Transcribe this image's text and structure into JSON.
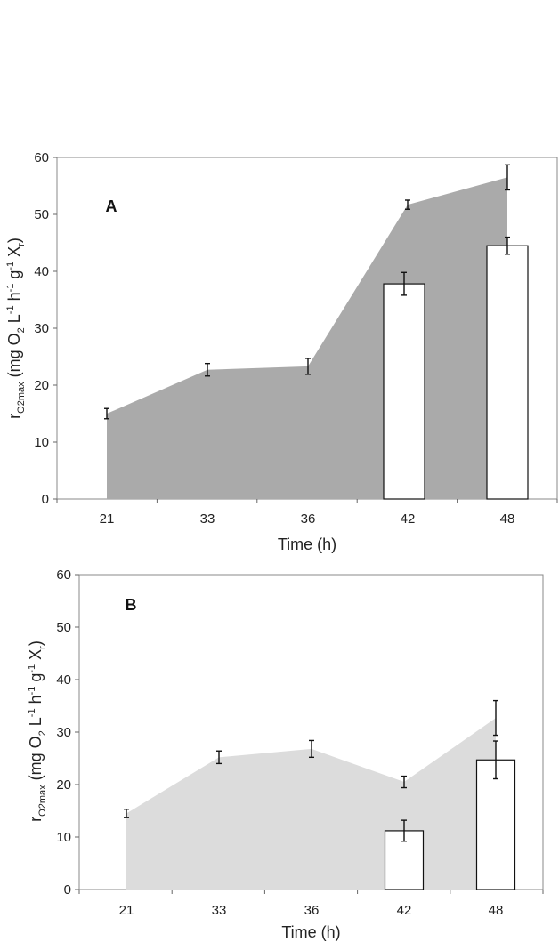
{
  "chart_data": [
    {
      "type": "area",
      "panel_label": "A",
      "categories": [
        "21",
        "33",
        "36",
        "42",
        "48"
      ],
      "ylim": [
        0,
        60
      ],
      "yticks": [
        "0",
        "10",
        "20",
        "30",
        "40",
        "50",
        "60"
      ],
      "xlabel": "Time (h)",
      "ylabel": {
        "r": "r",
        "sub": "O2max",
        "a": " (mg O",
        "sub2": "2",
        "b": " L",
        "sup1": "-1",
        "c": " h",
        "sup2": "-1",
        "d": " g",
        "sup3": "-1",
        "e": " X",
        "sub3": "r",
        "f": ")"
      },
      "series": [
        {
          "name": "area",
          "values": [
            15,
            22.7,
            23.3,
            51.7,
            56.5
          ],
          "errors": [
            0.9,
            1.1,
            1.4,
            0.8,
            2.2
          ],
          "color": "#aaaaaa"
        },
        {
          "name": "bars",
          "values": [
            null,
            null,
            null,
            37.8,
            44.5
          ],
          "errors": [
            null,
            null,
            null,
            2.0,
            1.5
          ],
          "color": "#ffffff"
        }
      ]
    },
    {
      "type": "area",
      "panel_label": "B",
      "categories": [
        "21",
        "33",
        "36",
        "42",
        "48"
      ],
      "ylim": [
        0,
        60
      ],
      "yticks": [
        "0",
        "10",
        "20",
        "30",
        "40",
        "50",
        "60"
      ],
      "xlabel": "Time (h)",
      "ylabel": {
        "r": "r",
        "sub": "O2max",
        "a": " (mg O",
        "sub2": "2",
        "b": " L",
        "sup1": "-1",
        "c": " h",
        "sup2": "-1",
        "d": " g",
        "sup3": "-1",
        "e": " X",
        "sub3": "r",
        "f": ")"
      },
      "series": [
        {
          "name": "area",
          "values": [
            14.5,
            25.2,
            26.8,
            20.5,
            32.7
          ],
          "errors": [
            0.8,
            1.2,
            1.6,
            1.1,
            3.3
          ],
          "color": "#dcdcdc"
        },
        {
          "name": "bars",
          "values": [
            null,
            null,
            null,
            11.2,
            24.7
          ],
          "errors": [
            null,
            null,
            null,
            2.0,
            3.6
          ],
          "color": "#ffffff"
        }
      ]
    }
  ]
}
